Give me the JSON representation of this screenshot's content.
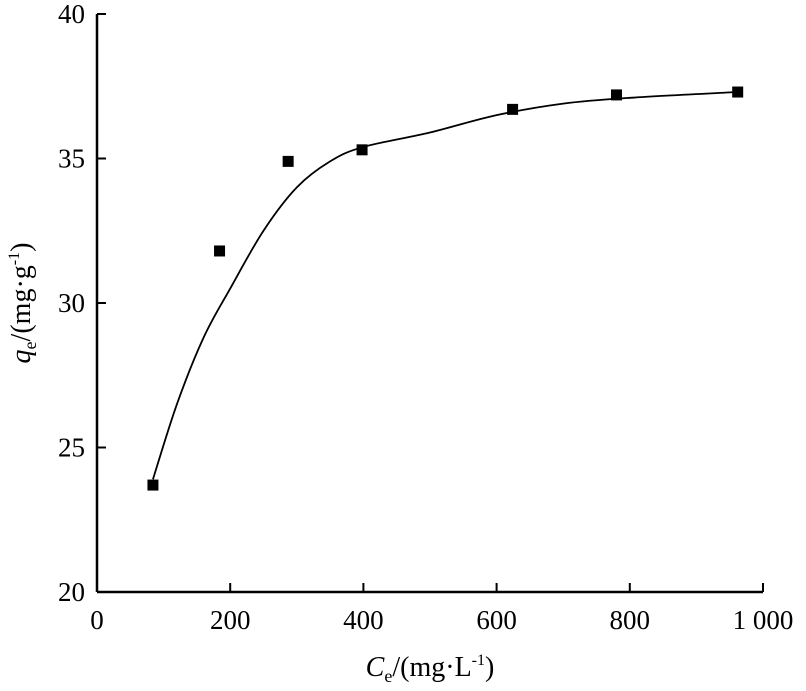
{
  "chart_data": {
    "type": "scatter",
    "xlabel": {
      "symbol": "C",
      "sub": "e",
      "unit_pre": "/(mg·L",
      "sup": "-1",
      "unit_post": ")"
    },
    "ylabel": {
      "symbol": "q",
      "sub": "e",
      "unit_pre": "/(mg·g",
      "sup": "-1",
      "unit_post": ")"
    },
    "xlim": [
      0,
      1000
    ],
    "ylim": [
      20,
      40
    ],
    "xticks": [
      0,
      200,
      400,
      600,
      800,
      1000
    ],
    "xtick_labels": [
      "0",
      "200",
      "400",
      "600",
      "800",
      "1 000"
    ],
    "yticks": [
      20,
      25,
      30,
      35,
      40
    ],
    "ytick_labels": [
      "20",
      "25",
      "30",
      "35",
      "40"
    ],
    "grid": false,
    "series": [
      {
        "kind": "points",
        "marker": "square",
        "x": [
          84,
          184,
          287,
          398,
          624,
          780,
          962
        ],
        "y": [
          23.7,
          31.8,
          34.9,
          35.3,
          36.7,
          37.2,
          37.3
        ]
      },
      {
        "kind": "fit-line",
        "x": [
          84,
          120,
          160,
          200,
          250,
          300,
          350,
          400,
          500,
          600,
          700,
          800,
          962
        ],
        "y": [
          23.9,
          26.5,
          28.8,
          30.5,
          32.5,
          34.0,
          34.9,
          35.4,
          35.9,
          36.5,
          36.9,
          37.1,
          37.3
        ]
      }
    ]
  }
}
